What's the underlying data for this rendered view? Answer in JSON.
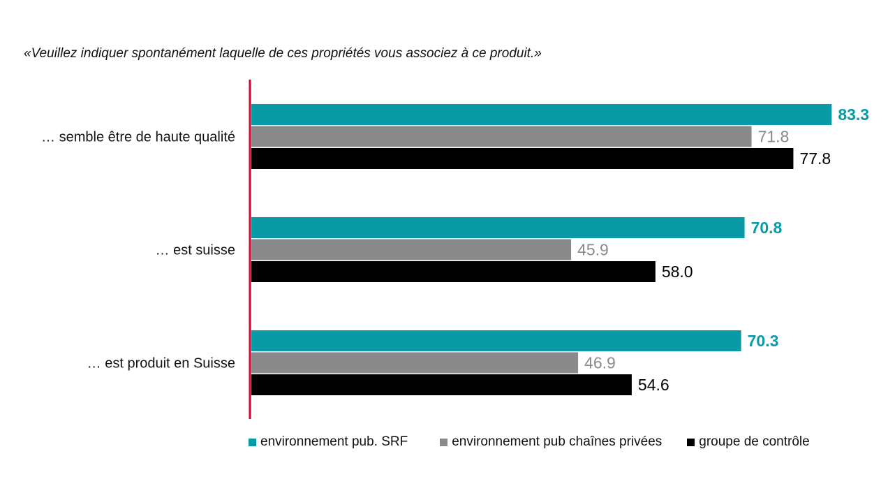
{
  "question": "«Veuillez indiquer spontanément laquelle de ces propriétés vous associez à ce produit.»",
  "chart_data": {
    "type": "bar",
    "orientation": "horizontal",
    "categories": [
      "… semble être de haute qualité",
      "… est suisse",
      "… est produit en Suisse"
    ],
    "series": [
      {
        "name": "environnement pub. SRF",
        "values": [
          83.3,
          70.8,
          70.3
        ],
        "labels": [
          "83.3",
          "70.8",
          "70.3"
        ],
        "color": "#0a9aa6",
        "label_color": "#0a9aa6",
        "label_bold": true
      },
      {
        "name": "environnement pub chaînes privées",
        "values": [
          71.8,
          45.9,
          46.9
        ],
        "labels": [
          "71.8",
          "45.9",
          "46.9"
        ],
        "color": "#8a8a8a",
        "label_color": "#8a8a8a",
        "label_bold": false
      },
      {
        "name": "groupe de contrôle",
        "values": [
          77.8,
          58.0,
          54.6
        ],
        "labels": [
          "77.8",
          "58.0",
          "54.6"
        ],
        "color": "#000000",
        "label_color": "#000000",
        "label_bold": false
      }
    ],
    "xlim": [
      0,
      100
    ],
    "grid": false,
    "axis_color": "#d6002e",
    "legend_position": "bottom"
  }
}
